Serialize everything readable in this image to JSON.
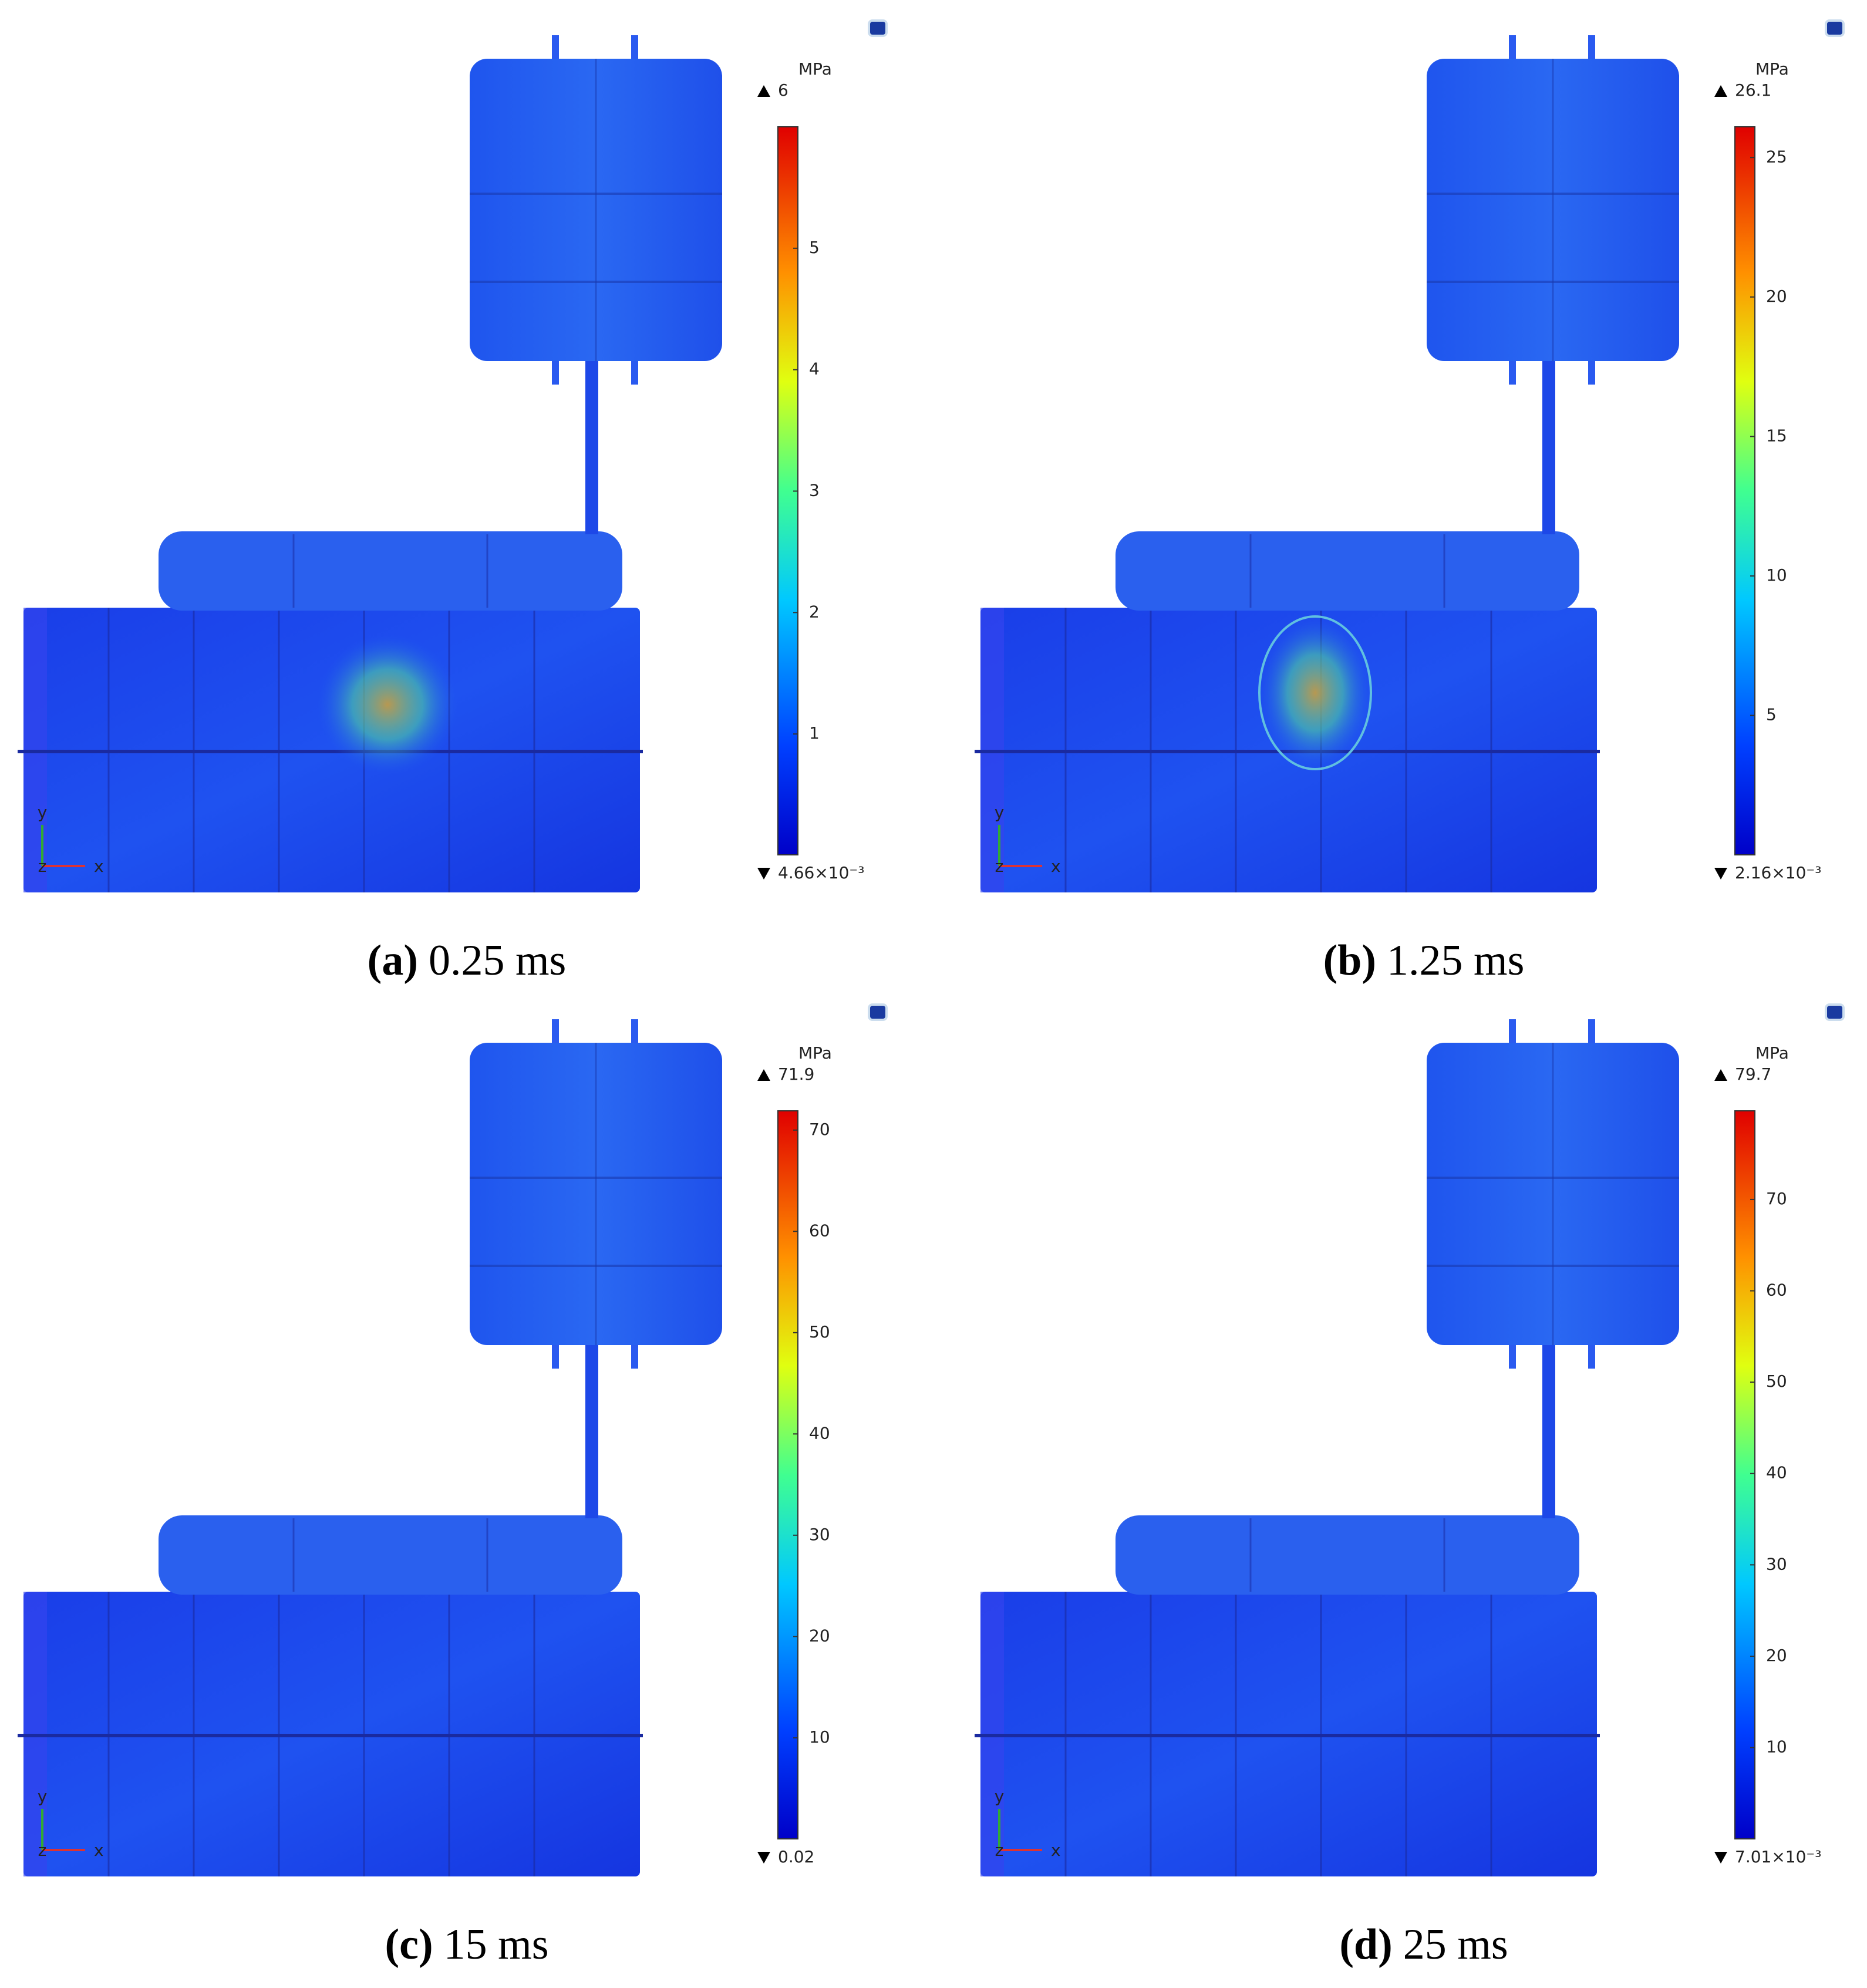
{
  "panels": [
    {
      "label": "(a)",
      "caption": "0.25 ms",
      "colorbar": {
        "unit": "MPa",
        "max": 6,
        "min": {
          "value": 0.00466,
          "label": "4.66×10⁻³"
        },
        "ticks": [
          1,
          2,
          3,
          4,
          5
        ]
      }
    },
    {
      "label": "(b)",
      "caption": "1.25 ms",
      "colorbar": {
        "unit": "MPa",
        "max": 26.1,
        "min": {
          "value": 0.00216,
          "label": "2.16×10⁻³"
        },
        "ticks": [
          5,
          10,
          15,
          20,
          25
        ]
      }
    },
    {
      "label": "(c)",
      "caption": "15 ms",
      "colorbar": {
        "unit": "MPa",
        "max": 71.9,
        "min": 0.02,
        "ticks": [
          10,
          20,
          30,
          40,
          50,
          60,
          70
        ]
      }
    },
    {
      "label": "(d)",
      "caption": "25 ms",
      "colorbar": {
        "unit": "MPa",
        "max": 79.7,
        "min": {
          "value": 0.00701,
          "label": "7.01×10⁻³"
        },
        "ticks": [
          10,
          20,
          30,
          40,
          50,
          60,
          70
        ]
      }
    }
  ],
  "axis_labels": {
    "x": "x",
    "y": "y",
    "z": "z"
  }
}
